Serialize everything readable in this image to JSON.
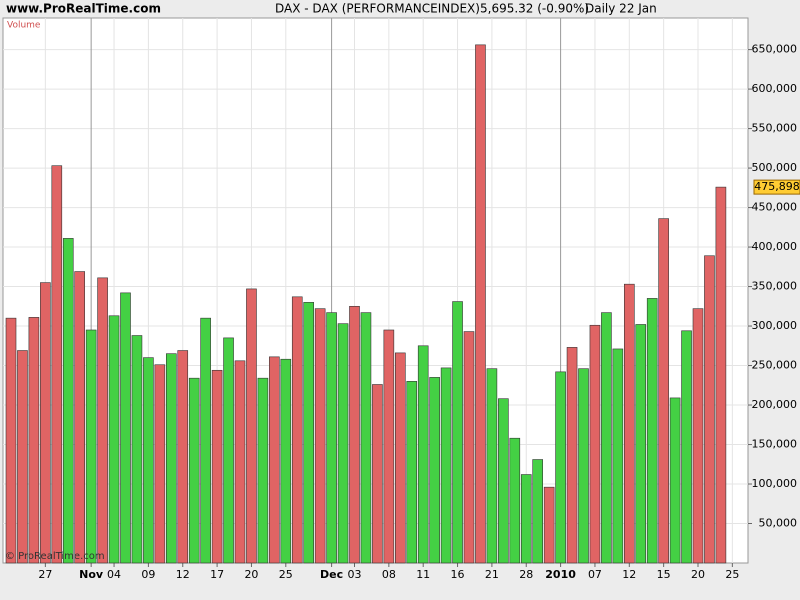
{
  "chart_data": {
    "type": "bar",
    "site": "www.ProRealTime.com",
    "title": "DAX - DAX (PERFORMANCEINDEX)",
    "quote": "5,695.32 (-0.90%)",
    "period": "Daily  22 Jan",
    "panel_label": "Volume",
    "copyright": "© ProRealTime.com",
    "categories": [
      null,
      null,
      null,
      "27",
      null,
      null,
      null,
      "Nov",
      null,
      "04",
      null,
      null,
      "09",
      null,
      null,
      "12",
      null,
      null,
      "17",
      null,
      null,
      "20",
      null,
      null,
      "25",
      null,
      null,
      null,
      "Dec",
      null,
      "03",
      null,
      null,
      "08",
      null,
      null,
      "11",
      null,
      null,
      "16",
      null,
      null,
      "21",
      null,
      null,
      "28",
      null,
      null,
      "2010",
      null,
      null,
      "07",
      null,
      null,
      "12",
      null,
      null,
      "15",
      null,
      null,
      "20",
      null,
      null,
      "25"
    ],
    "bold_categories": [
      "Nov",
      "Dec",
      "2010"
    ],
    "values": [
      310000,
      269000,
      311000,
      355000,
      503000,
      411000,
      369000,
      295000,
      361000,
      313000,
      342000,
      288000,
      260000,
      251000,
      265000,
      269000,
      234000,
      310000,
      244000,
      285000,
      256000,
      347000,
      234000,
      261000,
      258000,
      337000,
      330000,
      322000,
      317000,
      303000,
      325000,
      317000,
      226000,
      295000,
      266000,
      230000,
      275000,
      235000,
      247000,
      331000,
      293000,
      656000,
      246000,
      208000,
      158000,
      112000,
      131000,
      96000,
      242000,
      273000,
      246000,
      301000,
      317000,
      271000,
      353000,
      302000,
      335000,
      436000,
      209000,
      294000,
      322000,
      389000,
      475898,
      null
    ],
    "bar_colors": [
      "#e06464",
      "#e06464",
      "#e06464",
      "#e06464",
      "#e06464",
      "#44d044",
      "#e06464",
      "#44d044",
      "#e06464",
      "#44d044",
      "#44d044",
      "#44d044",
      "#44d044",
      "#e06464",
      "#44d044",
      "#e06464",
      "#44d044",
      "#44d044",
      "#e06464",
      "#44d044",
      "#e06464",
      "#e06464",
      "#44d044",
      "#e06464",
      "#44d044",
      "#e06464",
      "#44d044",
      "#e06464",
      "#44d044",
      "#44d044",
      "#e06464",
      "#44d044",
      "#e06464",
      "#e06464",
      "#e06464",
      "#44d044",
      "#44d044",
      "#44d044",
      "#44d044",
      "#44d044",
      "#e06464",
      "#e06464",
      "#44d044",
      "#44d044",
      "#44d044",
      "#44d044",
      "#44d044",
      "#e06464",
      "#44d044",
      "#e06464",
      "#44d044",
      "#e06464",
      "#44d044",
      "#44d044",
      "#e06464",
      "#44d044",
      "#44d044",
      "#e06464",
      "#44d044",
      "#44d044",
      "#e06464",
      "#e06464",
      "#e06464",
      null
    ],
    "last_value_label": "475,898",
    "ylim": [
      0,
      690000
    ],
    "yticks": [
      {
        "value": 50000,
        "label": "50,000"
      },
      {
        "value": 100000,
        "label": "100,000"
      },
      {
        "value": 150000,
        "label": "150,000"
      },
      {
        "value": 200000,
        "label": "200,000"
      },
      {
        "value": 250000,
        "label": "250,000"
      },
      {
        "value": 300000,
        "label": "300,000"
      },
      {
        "value": 350000,
        "label": "350,000"
      },
      {
        "value": 400000,
        "label": "400,000"
      },
      {
        "value": 450000,
        "label": "450,000"
      },
      {
        "value": 500000,
        "label": "500,000"
      },
      {
        "value": 550000,
        "label": "550,000"
      },
      {
        "value": 600000,
        "label": "600,000"
      },
      {
        "value": 650000,
        "label": "650,000"
      }
    ],
    "grid": true
  }
}
